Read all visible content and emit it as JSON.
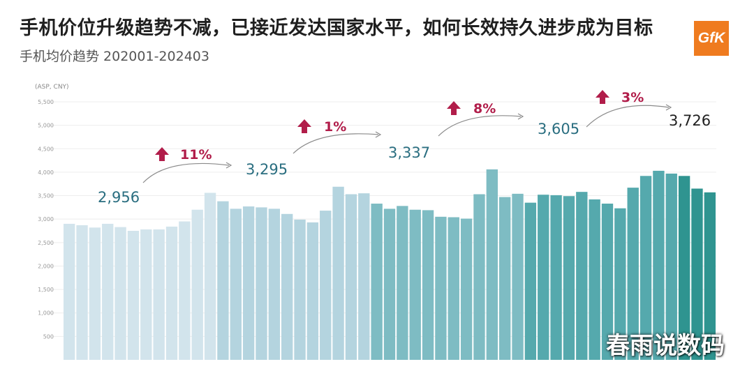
{
  "title": "手机价位升级趋势不减，已接近发达国家水平，如何长效持久进步成为目标",
  "subtitle": "手机均价趋势 202001-202403",
  "logo_text": "GfK",
  "watermark": "春雨说数码",
  "chart_data": {
    "type": "bar",
    "ylabel": "(ASP, CNY)",
    "ylim": [
      0,
      5500
    ],
    "yticks": [
      "500",
      "1,000",
      "1,500",
      "2,000",
      "2,500",
      "3,000",
      "3,500",
      "4,000",
      "4,500",
      "5,000",
      "5,500"
    ],
    "grid": true,
    "values": [
      2900,
      2870,
      2820,
      2900,
      2830,
      2750,
      2780,
      2780,
      2840,
      2950,
      3200,
      3560,
      3380,
      3220,
      3270,
      3250,
      3220,
      3110,
      2990,
      2930,
      3180,
      3690,
      3530,
      3550,
      3330,
      3220,
      3280,
      3200,
      3190,
      3050,
      3040,
      3010,
      3530,
      4060,
      3470,
      3540,
      3350,
      3520,
      3510,
      3490,
      3580,
      3420,
      3330,
      3230,
      3670,
      3920,
      4030,
      3970,
      3920,
      3650,
      3570
    ],
    "year_colors": [
      "#d2e4ec",
      "#b4d4df",
      "#7ebcc3",
      "#55a9ad",
      "#2f9490"
    ],
    "annual_labels": [
      {
        "label": "2,956",
        "change": "11%"
      },
      {
        "label": "3,295",
        "change": "1%"
      },
      {
        "label": "3,337",
        "change": "8%"
      },
      {
        "label": "3,605",
        "change": "3%"
      },
      {
        "label": "3,726"
      }
    ],
    "colors": {
      "label": "#2a6e80",
      "change": "#b11d4a",
      "last_label": "#1f1f1f"
    }
  }
}
